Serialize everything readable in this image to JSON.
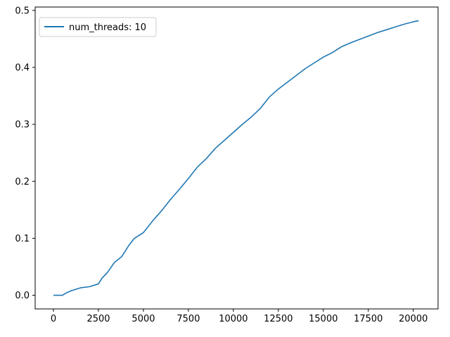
{
  "chart_data": {
    "type": "line",
    "title": "",
    "xlabel": "",
    "ylabel": "",
    "xlim": [
      -1018,
      21378
    ],
    "ylim": [
      -0.024,
      0.506
    ],
    "xticks": [
      0,
      2500,
      5000,
      7500,
      10000,
      12500,
      15000,
      17500,
      20000
    ],
    "xtick_labels": [
      "0",
      "2500",
      "5000",
      "7500",
      "10000",
      "12500",
      "15000",
      "17500",
      "20000"
    ],
    "yticks": [
      0.0,
      0.1,
      0.2,
      0.3,
      0.4,
      0.5
    ],
    "ytick_labels": [
      "0.0",
      "0.1",
      "0.2",
      "0.3",
      "0.4",
      "0.5"
    ],
    "grid": false,
    "legend_position": "upper left",
    "series": [
      {
        "name": "num_threads: 10",
        "color": "#1f77b4",
        "x": [
          0,
          500,
          700,
          1000,
          1500,
          2000,
          2500,
          2700,
          3000,
          3400,
          3800,
          4200,
          4500,
          5000,
          5500,
          6000,
          6500,
          7000,
          7500,
          8000,
          8500,
          9000,
          9500,
          10000,
          10500,
          11000,
          11500,
          12000,
          12500,
          13000,
          13500,
          14000,
          14500,
          15000,
          15500,
          16000,
          16500,
          17000,
          17500,
          18000,
          18500,
          19000,
          19500,
          20000,
          20300
        ],
        "y": [
          0.0,
          0.0,
          0.004,
          0.008,
          0.013,
          0.015,
          0.02,
          0.03,
          0.04,
          0.058,
          0.068,
          0.088,
          0.1,
          0.11,
          0.13,
          0.148,
          0.168,
          0.186,
          0.205,
          0.225,
          0.24,
          0.258,
          0.272,
          0.286,
          0.3,
          0.313,
          0.328,
          0.348,
          0.362,
          0.374,
          0.386,
          0.398,
          0.408,
          0.418,
          0.426,
          0.436,
          0.443,
          0.449,
          0.455,
          0.461,
          0.466,
          0.471,
          0.476,
          0.48,
          0.482
        ]
      }
    ]
  }
}
